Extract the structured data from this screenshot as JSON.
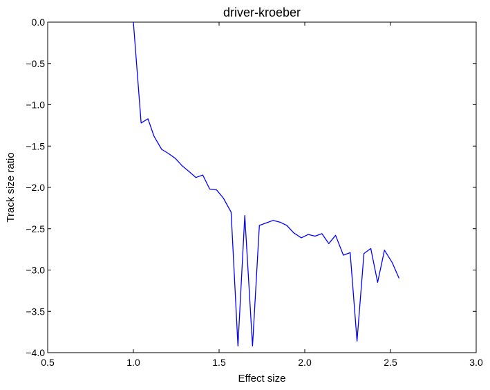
{
  "chart_data": {
    "type": "line",
    "title": "driver-kroeber",
    "xlabel": "Effect size",
    "ylabel": "Track size ratio",
    "xlim": [
      0.5,
      3.0
    ],
    "ylim": [
      -4.0,
      0.0
    ],
    "x_ticks": [
      0.5,
      1.0,
      1.5,
      2.0,
      2.5,
      3.0
    ],
    "x_tick_labels": [
      "0.5",
      "1.0",
      "1.5",
      "2.0",
      "2.5",
      "3.0"
    ],
    "y_ticks": [
      0.0,
      -0.5,
      -1.0,
      -1.5,
      -2.0,
      -2.5,
      -3.0,
      -3.5,
      -4.0
    ],
    "y_tick_labels": [
      "0.0",
      "−0.5",
      "−1.0",
      "−1.5",
      "−2.0",
      "−2.5",
      "−3.0",
      "−3.5",
      "−4.0"
    ],
    "grid": false,
    "series": [
      {
        "color": "#0000ff",
        "x": [
          1.0,
          1.045,
          1.085,
          1.12,
          1.165,
          1.205,
          1.245,
          1.285,
          1.32,
          1.365,
          1.405,
          1.445,
          1.485,
          1.525,
          1.57,
          1.61,
          1.65,
          1.695,
          1.735,
          1.775,
          1.815,
          1.855,
          1.895,
          1.935,
          1.98,
          2.02,
          2.06,
          2.1,
          2.14,
          2.18,
          2.225,
          2.265,
          2.305,
          2.345,
          2.385,
          2.425,
          2.465,
          2.51,
          2.55
        ],
        "y": [
          0.0,
          -1.22,
          -1.17,
          -1.38,
          -1.54,
          -1.59,
          -1.65,
          -1.74,
          -1.8,
          -1.88,
          -1.85,
          -2.02,
          -2.03,
          -2.13,
          -2.3,
          -3.92,
          -2.34,
          -3.92,
          -2.46,
          -2.43,
          -2.4,
          -2.42,
          -2.46,
          -2.55,
          -2.61,
          -2.57,
          -2.59,
          -2.56,
          -2.68,
          -2.58,
          -2.82,
          -2.79,
          -3.86,
          -2.8,
          -2.74,
          -3.15,
          -2.76,
          -2.91,
          -3.1
        ]
      }
    ]
  }
}
